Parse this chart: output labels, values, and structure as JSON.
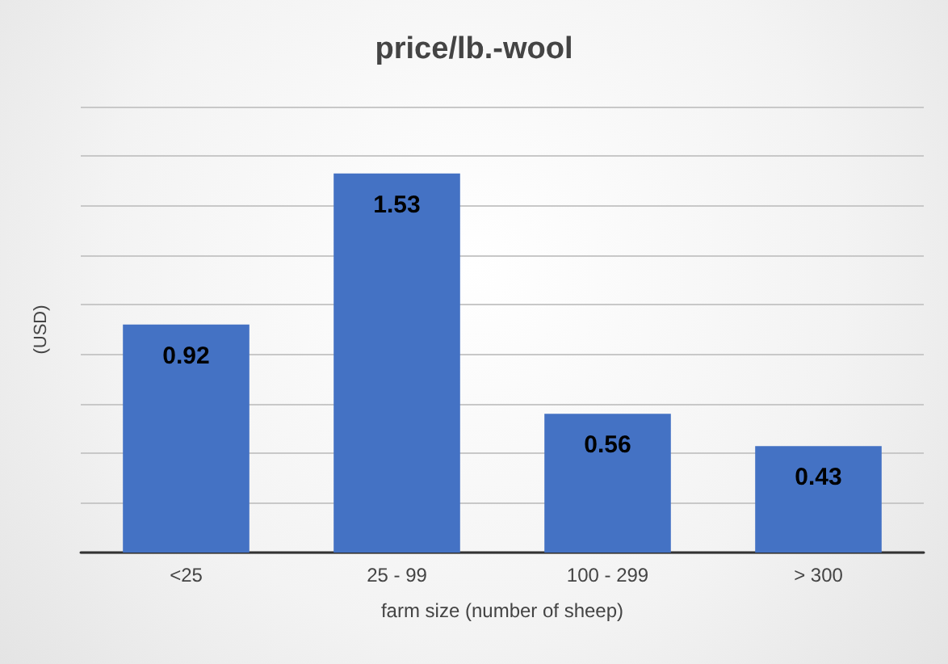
{
  "chart_data": {
    "type": "bar",
    "title": "price/lb.-wool",
    "xlabel": "farm size (number of sheep)",
    "ylabel": "(USD)",
    "categories": [
      "<25",
      "25 - 99",
      "100 - 299",
      "> 300"
    ],
    "values": [
      0.92,
      1.53,
      0.56,
      0.43
    ],
    "color": "#4472c4",
    "ylim": [
      0,
      1.8
    ],
    "yticks": [
      {
        "value": 0,
        "label": null
      },
      {
        "value": 0.2,
        "label": null
      },
      {
        "value": 0.4,
        "label": null
      },
      {
        "value": 0.6,
        "label": null
      },
      {
        "value": 0.8,
        "label": null
      },
      {
        "value": 1.0,
        "label": null
      },
      {
        "value": 1.2,
        "label": null
      },
      {
        "value": 1.4,
        "label": null
      },
      {
        "value": 1.6,
        "label": null
      },
      {
        "value": 1.8,
        "label": null
      }
    ],
    "grid": "y",
    "data_labels": true
  }
}
